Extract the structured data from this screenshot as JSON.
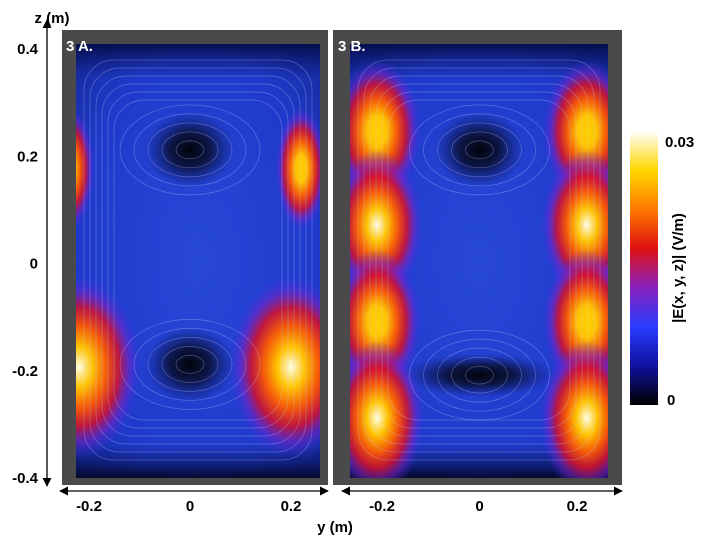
{
  "chart_data": {
    "type": "heatmap",
    "z_axis": {
      "label": "z (m)",
      "ticks": [
        {
          "value": 0.4,
          "label": "0.4"
        },
        {
          "value": 0.2,
          "label": "0.2"
        },
        {
          "value": 0.0,
          "label": "0"
        },
        {
          "value": -0.2,
          "label": "-0.2"
        },
        {
          "value": -0.4,
          "label": "-0.4"
        }
      ],
      "range": [
        -0.42,
        0.43
      ]
    },
    "y_axis": {
      "label": "y (m)",
      "ticks": [
        {
          "value": -0.2,
          "label": "-0.2"
        },
        {
          "value": 0.0,
          "label": "0"
        },
        {
          "value": 0.2,
          "label": "0.2"
        }
      ],
      "range": [
        -0.26,
        0.26
      ]
    },
    "colorbar": {
      "label": "|E(x, y, z)| (V/m)",
      "min": 0,
      "max": 0.03,
      "min_label": "0",
      "max_label": "0.03",
      "colormap": [
        "#000000",
        "#1010a0",
        "#2a3cff",
        "#8a20c0",
        "#e01010",
        "#ff7a00",
        "#ffd800",
        "#ffffff"
      ]
    },
    "panels": [
      {
        "title": "3 A.",
        "hotspots": [
          {
            "y": -0.24,
            "z": 0.175,
            "strength": 0.02
          },
          {
            "y": 0.22,
            "z": 0.175,
            "strength": 0.02
          },
          {
            "y": -0.22,
            "z": -0.195,
            "strength": 0.03
          },
          {
            "y": 0.2,
            "z": -0.195,
            "strength": 0.03
          }
        ],
        "minima": [
          {
            "y": 0.0,
            "z": 0.21
          },
          {
            "y": 0.0,
            "z": -0.19
          }
        ]
      },
      {
        "title": "3 B.",
        "hotspots": [
          {
            "y": -0.21,
            "z": 0.245,
            "strength": 0.024
          },
          {
            "y": 0.22,
            "z": 0.245,
            "strength": 0.024
          },
          {
            "y": -0.21,
            "z": 0.07,
            "strength": 0.027
          },
          {
            "y": 0.22,
            "z": 0.07,
            "strength": 0.027
          },
          {
            "y": -0.21,
            "z": -0.11,
            "strength": 0.024
          },
          {
            "y": 0.22,
            "z": -0.11,
            "strength": 0.024
          },
          {
            "y": -0.21,
            "z": -0.29,
            "strength": 0.029
          },
          {
            "y": 0.22,
            "z": -0.29,
            "strength": 0.029
          }
        ],
        "minima": [
          {
            "y": 0.0,
            "z": 0.21
          },
          {
            "y": 0.0,
            "z": -0.21
          }
        ]
      }
    ]
  }
}
